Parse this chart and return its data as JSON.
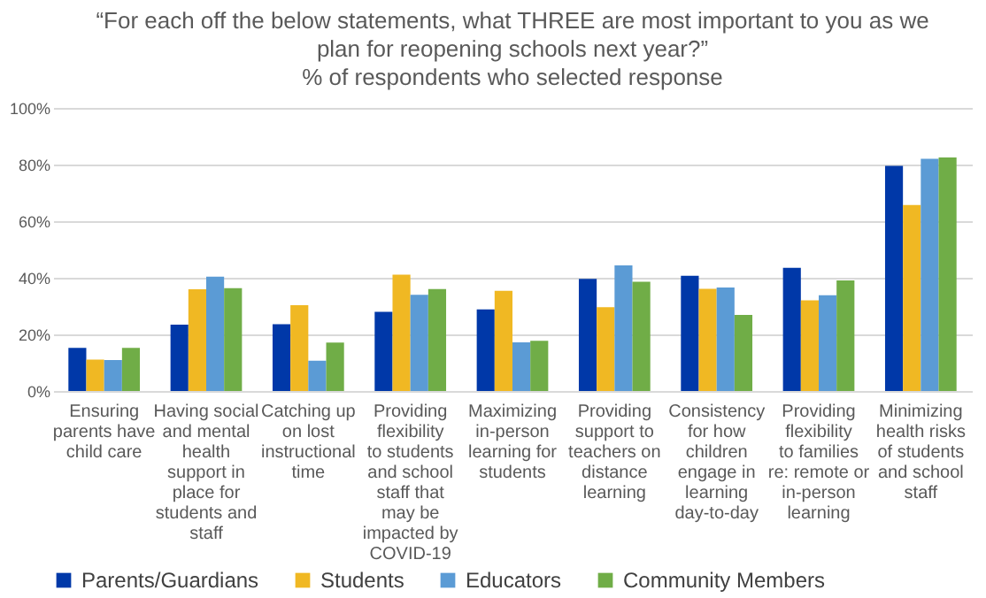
{
  "chart_data": {
    "type": "bar",
    "title": "“For each off the below statements, what THREE are most important to you as we plan for reopening schools next year?”",
    "subtitle": "% of respondents who selected response",
    "categories": [
      "Ensuring parents have child care",
      "Having social and mental health support in place for students and staff",
      "Catching up on lost instructional time",
      "Providing flexibility to students and school staff that may be impacted by COVID-19",
      "Maximizing in-person learning for students",
      "Providing support to teachers on distance learning",
      "Consistency for how children engage in learning day-to-day",
      "Providing flexibility to families re: remote or in-person learning",
      "Minimizing health risks of students and school staff"
    ],
    "series": [
      {
        "name": "Parents/Guardians",
        "color": "#0038a8",
        "values": [
          15.2,
          23.4,
          23.6,
          28,
          28.8,
          39.6,
          40.7,
          43.5,
          79.5
        ]
      },
      {
        "name": "Students",
        "color": "#f0b823",
        "values": [
          11.1,
          35.9,
          30.3,
          41.1,
          35.4,
          29.6,
          36.1,
          32,
          65.7
        ]
      },
      {
        "name": "Educators",
        "color": "#5b9bd5",
        "values": [
          10.9,
          40.4,
          10.7,
          34,
          17.2,
          44.4,
          36.6,
          33.8,
          82
        ]
      },
      {
        "name": "Community Members",
        "color": "#70ad47",
        "values": [
          15.2,
          36.3,
          17.1,
          36,
          17.7,
          38.6,
          26.9,
          39.1,
          82.5
        ]
      }
    ],
    "ylim": [
      0,
      100
    ],
    "yticks": [
      {
        "value": 0,
        "label": "0%"
      },
      {
        "value": 20,
        "label": "20%"
      },
      {
        "value": 40,
        "label": "40%"
      },
      {
        "value": 60,
        "label": "60%"
      },
      {
        "value": 80,
        "label": "80%"
      },
      {
        "value": 100,
        "label": "100%"
      }
    ],
    "grid": "y",
    "legend": "bottom"
  }
}
